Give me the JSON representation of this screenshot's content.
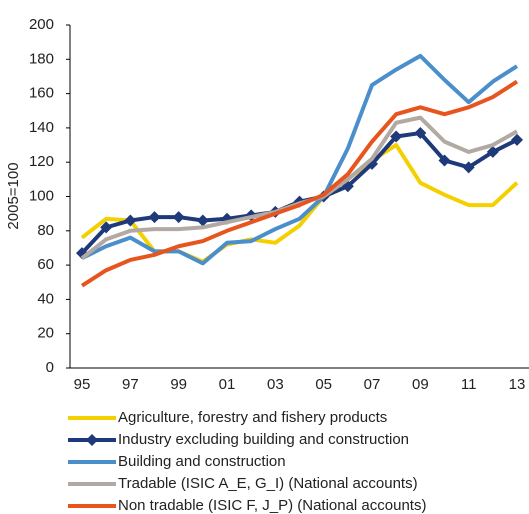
{
  "chart_data": {
    "type": "line",
    "y_label": "2005=100",
    "categories": [
      "95",
      null,
      "97",
      null,
      "99",
      null,
      "01",
      null,
      "03",
      null,
      "05",
      null,
      "07",
      null,
      "09",
      null,
      "11",
      null,
      "13"
    ],
    "ylim": [
      0,
      200
    ],
    "yticks": [
      0,
      20,
      40,
      60,
      80,
      100,
      120,
      140,
      160,
      180,
      200
    ],
    "series": [
      {
        "name": "Agriculture, forestry and fishery products",
        "color": "#f5d000",
        "values": [
          76,
          87,
          86,
          68,
          68,
          62,
          72,
          75,
          73,
          83,
          100,
          110,
          121,
          130,
          108,
          101,
          95,
          95,
          108
        ]
      },
      {
        "name": "Industry excluding building and construction",
        "color": "#1f3a7a",
        "marker": "diamond",
        "values": [
          67,
          82,
          86,
          88,
          88,
          86,
          87,
          89,
          91,
          97,
          100,
          106,
          119,
          135,
          137,
          121,
          117,
          126,
          133
        ]
      },
      {
        "name": "Building and construction",
        "color": "#4a8fcc",
        "values": [
          64,
          71,
          76,
          68,
          68,
          61,
          73,
          74,
          81,
          87,
          100,
          128,
          165,
          174,
          182,
          168,
          155,
          167,
          176
        ]
      },
      {
        "name": "Tradable (ISIC A_E, G_I) (National accounts)",
        "color": "#b3a9a3",
        "values": [
          64,
          75,
          80,
          81,
          81,
          82,
          85,
          88,
          91,
          96,
          100,
          110,
          122,
          143,
          146,
          132,
          126,
          130,
          138
        ]
      },
      {
        "name": "Non tradable (ISIC F, J_P) (National accounts)",
        "color": "#e8541e",
        "values": [
          48,
          57,
          63,
          66,
          71,
          74,
          80,
          85,
          90,
          95,
          101,
          113,
          132,
          148,
          152,
          148,
          152,
          158,
          167
        ]
      }
    ]
  }
}
